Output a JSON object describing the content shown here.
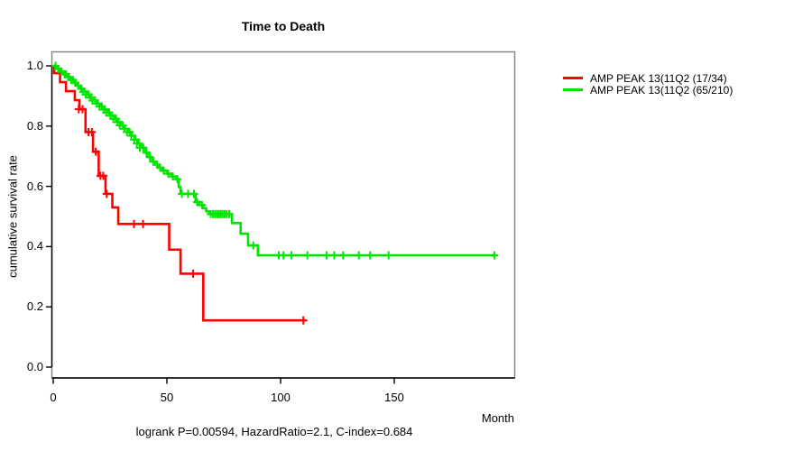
{
  "colors": {
    "red": "#ff0000",
    "green": "#00e500",
    "axis": "#000000",
    "box": "#888888",
    "text": "#000000",
    "background": "#ffffff"
  },
  "chart_data": {
    "type": "line",
    "subtype": "kaplan-meier-step",
    "title": "Time to Death",
    "xlabel": "Month",
    "ylabel": "cumulative survival rate",
    "footer": "logrank P=0.00594, HazardRatio=2.1, C-index=0.684",
    "xlim": [
      0,
      200
    ],
    "ylim": [
      0.0,
      1.0
    ],
    "x_ticks": [
      0,
      50,
      100,
      150
    ],
    "x_tick_labels": [
      "0",
      "50",
      "100",
      "150"
    ],
    "y_ticks": [
      0.0,
      0.2,
      0.4,
      0.6,
      0.8,
      1.0
    ],
    "y_tick_labels": [
      "0.0",
      "0.2",
      "0.4",
      "0.6",
      "0.8",
      "1.0"
    ],
    "grid": false,
    "legend_position": "right-outside",
    "series": [
      {
        "name": "AMP PEAK 13(11Q2 (17/34)",
        "color_key": "red",
        "events_total": "17/34",
        "steps": [
          [
            0,
            1.0
          ],
          [
            0.4,
            0.976
          ],
          [
            3,
            0.946
          ],
          [
            5.6,
            0.916
          ],
          [
            9.5,
            0.886
          ],
          [
            11.5,
            0.856
          ],
          [
            14.2,
            0.78
          ],
          [
            17.5,
            0.715
          ],
          [
            20,
            0.635
          ],
          [
            23,
            0.575
          ],
          [
            26,
            0.53
          ],
          [
            28.6,
            0.475
          ],
          [
            51,
            0.39
          ],
          [
            56,
            0.31
          ],
          [
            66,
            0.155
          ]
        ],
        "end_month": 111,
        "censors": [
          [
            11.2,
            0.856
          ],
          [
            12.9,
            0.856
          ],
          [
            15.5,
            0.78
          ],
          [
            17,
            0.78
          ],
          [
            18.7,
            0.715
          ],
          [
            20.8,
            0.635
          ],
          [
            22,
            0.635
          ],
          [
            23.5,
            0.575
          ],
          [
            35.5,
            0.475
          ],
          [
            39.5,
            0.475
          ],
          [
            61.5,
            0.31
          ],
          [
            110,
            0.155
          ]
        ]
      },
      {
        "name": "AMP PEAK 13(11Q2 (65/210)",
        "color_key": "green",
        "events_total": "65/210",
        "steps": [
          [
            0,
            1.0
          ],
          [
            1.5,
            0.99
          ],
          [
            3,
            0.981
          ],
          [
            4.5,
            0.972
          ],
          [
            6,
            0.963
          ],
          [
            7.5,
            0.953
          ],
          [
            9,
            0.944
          ],
          [
            10.5,
            0.934
          ],
          [
            12,
            0.924
          ],
          [
            13.5,
            0.914
          ],
          [
            15,
            0.905
          ],
          [
            16.5,
            0.895
          ],
          [
            18,
            0.885
          ],
          [
            19.5,
            0.875
          ],
          [
            21,
            0.865
          ],
          [
            22.5,
            0.855
          ],
          [
            24,
            0.845
          ],
          [
            25.5,
            0.835
          ],
          [
            27,
            0.824
          ],
          [
            28.5,
            0.813
          ],
          [
            30,
            0.802
          ],
          [
            31.5,
            0.791
          ],
          [
            33,
            0.78
          ],
          [
            34.5,
            0.768
          ],
          [
            36,
            0.755
          ],
          [
            37.5,
            0.742
          ],
          [
            39,
            0.728
          ],
          [
            40.5,
            0.712
          ],
          [
            42,
            0.697
          ],
          [
            43.5,
            0.682
          ],
          [
            45,
            0.672
          ],
          [
            46.5,
            0.662
          ],
          [
            48,
            0.652
          ],
          [
            50,
            0.642
          ],
          [
            52,
            0.633
          ],
          [
            54,
            0.624
          ],
          [
            55.2,
            0.598
          ],
          [
            56,
            0.575
          ],
          [
            62.6,
            0.548
          ],
          [
            64.2,
            0.538
          ],
          [
            66,
            0.527
          ],
          [
            67.3,
            0.517
          ],
          [
            68.5,
            0.508
          ],
          [
            78.6,
            0.478
          ],
          [
            82.4,
            0.443
          ],
          [
            85.7,
            0.404
          ],
          [
            90,
            0.371
          ]
        ],
        "end_month": 195,
        "censors": [
          [
            1,
            1.0
          ],
          [
            2.2,
            0.99
          ],
          [
            3.6,
            0.981
          ],
          [
            5,
            0.972
          ],
          [
            5.7,
            0.972
          ],
          [
            6.7,
            0.963
          ],
          [
            7.9,
            0.953
          ],
          [
            8.7,
            0.953
          ],
          [
            9.7,
            0.944
          ],
          [
            11,
            0.934
          ],
          [
            12.4,
            0.924
          ],
          [
            13.2,
            0.914
          ],
          [
            14.3,
            0.905
          ],
          [
            15.6,
            0.905
          ],
          [
            16.3,
            0.895
          ],
          [
            17.2,
            0.885
          ],
          [
            18.4,
            0.885
          ],
          [
            19.2,
            0.875
          ],
          [
            20.3,
            0.865
          ],
          [
            21.4,
            0.865
          ],
          [
            22.3,
            0.855
          ],
          [
            23.3,
            0.845
          ],
          [
            24.6,
            0.845
          ],
          [
            25.3,
            0.835
          ],
          [
            26.4,
            0.824
          ],
          [
            27.6,
            0.824
          ],
          [
            28.3,
            0.813
          ],
          [
            29.3,
            0.802
          ],
          [
            30.6,
            0.802
          ],
          [
            31.3,
            0.791
          ],
          [
            32.4,
            0.78
          ],
          [
            33.6,
            0.78
          ],
          [
            34.3,
            0.768
          ],
          [
            35.6,
            0.755
          ],
          [
            36.8,
            0.742
          ],
          [
            38.1,
            0.728
          ],
          [
            39.6,
            0.728
          ],
          [
            41,
            0.712
          ],
          [
            42.5,
            0.697
          ],
          [
            44,
            0.682
          ],
          [
            45.6,
            0.672
          ],
          [
            47,
            0.662
          ],
          [
            48.6,
            0.652
          ],
          [
            50.6,
            0.642
          ],
          [
            52.6,
            0.633
          ],
          [
            54.6,
            0.624
          ],
          [
            56.6,
            0.575
          ],
          [
            59.3,
            0.575
          ],
          [
            61.9,
            0.575
          ],
          [
            63.3,
            0.548
          ],
          [
            65.4,
            0.538
          ],
          [
            69.3,
            0.508
          ],
          [
            70.3,
            0.508
          ],
          [
            71.2,
            0.508
          ],
          [
            72.1,
            0.508
          ],
          [
            72.9,
            0.508
          ],
          [
            73.7,
            0.508
          ],
          [
            74.5,
            0.508
          ],
          [
            75.4,
            0.508
          ],
          [
            76.3,
            0.508
          ],
          [
            77.4,
            0.508
          ],
          [
            88,
            0.404
          ],
          [
            99.2,
            0.371
          ],
          [
            101.3,
            0.371
          ],
          [
            104.8,
            0.371
          ],
          [
            111.8,
            0.371
          ],
          [
            120.2,
            0.371
          ],
          [
            123.6,
            0.371
          ],
          [
            127.5,
            0.371
          ],
          [
            134.4,
            0.371
          ],
          [
            139.4,
            0.371
          ],
          [
            147.5,
            0.371
          ],
          [
            194,
            0.371
          ]
        ]
      }
    ]
  }
}
